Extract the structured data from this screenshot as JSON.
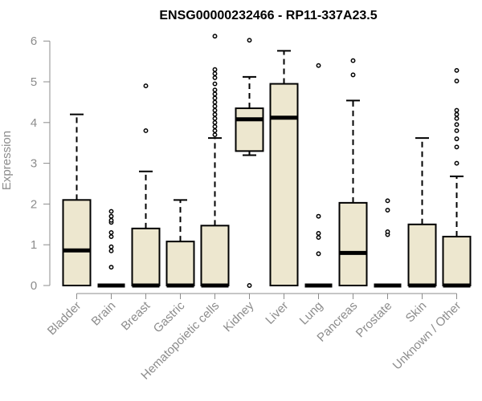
{
  "chart_data": {
    "type": "box",
    "title": "ENSG00000232466 - RP11-337A23.5",
    "ylabel": "Expression",
    "xlabel": "",
    "ylim": [
      0,
      6.2
    ],
    "yticks": [
      0,
      1,
      2,
      3,
      4,
      5,
      6
    ],
    "grid": false,
    "box_fill": "#ede7cf",
    "axis_color": "#8c8c8c",
    "categories": [
      "Bladder",
      "Brain",
      "Breast",
      "Gastric",
      "Hematopoietic cells",
      "Kidney",
      "Liver",
      "Lung",
      "Pancreas",
      "Prostate",
      "Skin",
      "Unknown / Other"
    ],
    "boxes": [
      {
        "category": "Bladder",
        "q1": 0,
        "median": 0.86,
        "q3": 2.1,
        "whisker_low": 0,
        "whisker_high": 4.2,
        "outliers": []
      },
      {
        "category": "Brain",
        "q1": 0,
        "median": 0,
        "q3": 0,
        "whisker_low": 0,
        "whisker_high": 0,
        "outliers": [
          0.45,
          0.85,
          0.95,
          1.2,
          1.3,
          1.55,
          1.6,
          1.7,
          1.82
        ]
      },
      {
        "category": "Breast",
        "q1": 0,
        "median": 0,
        "q3": 1.4,
        "whisker_low": 0,
        "whisker_high": 2.8,
        "outliers": [
          3.8,
          4.9
        ]
      },
      {
        "category": "Gastric",
        "q1": 0,
        "median": 0,
        "q3": 1.08,
        "whisker_low": 0,
        "whisker_high": 2.1,
        "outliers": []
      },
      {
        "category": "Hematopoietic cells",
        "q1": 0,
        "median": 0,
        "q3": 1.47,
        "whisker_low": 0,
        "whisker_high": 3.62,
        "outliers": [
          3.7,
          3.8,
          3.9,
          4.0,
          4.1,
          4.2,
          4.3,
          4.4,
          4.5,
          4.6,
          4.7,
          4.8,
          4.95,
          5.1,
          5.2,
          5.3,
          6.12
        ]
      },
      {
        "category": "Kidney",
        "q1": 3.3,
        "median": 4.08,
        "q3": 4.35,
        "whisker_low": 3.2,
        "whisker_high": 5.12,
        "outliers": [
          0,
          6.02
        ]
      },
      {
        "category": "Liver",
        "q1": 0,
        "median": 4.12,
        "q3": 4.95,
        "whisker_low": 0,
        "whisker_high": 5.76,
        "outliers": []
      },
      {
        "category": "Lung",
        "q1": 0,
        "median": 0,
        "q3": 0,
        "whisker_low": 0,
        "whisker_high": 0,
        "outliers": [
          0.78,
          1.18,
          1.28,
          1.7,
          5.4
        ]
      },
      {
        "category": "Pancreas",
        "q1": 0,
        "median": 0.8,
        "q3": 2.03,
        "whisker_low": 0,
        "whisker_high": 4.54,
        "outliers": [
          5.17,
          5.52
        ]
      },
      {
        "category": "Prostate",
        "q1": 0,
        "median": 0,
        "q3": 0,
        "whisker_low": 0,
        "whisker_high": 0,
        "outliers": [
          1.25,
          1.32,
          1.85,
          2.08
        ]
      },
      {
        "category": "Skin",
        "q1": 0,
        "median": 0,
        "q3": 1.5,
        "whisker_low": 0,
        "whisker_high": 3.62,
        "outliers": []
      },
      {
        "category": "Unknown / Other",
        "q1": 0,
        "median": 0,
        "q3": 1.2,
        "whisker_low": 0,
        "whisker_high": 2.68,
        "outliers": [
          3.0,
          3.4,
          3.6,
          3.8,
          3.95,
          4.1,
          4.2,
          4.3,
          5.02,
          5.28
        ]
      }
    ]
  }
}
